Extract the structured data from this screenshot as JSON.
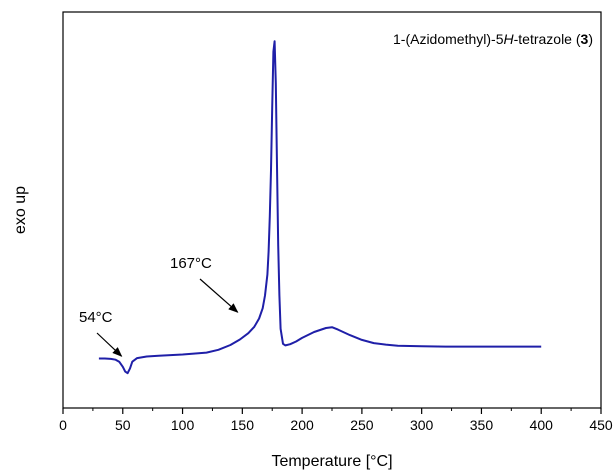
{
  "chart_data": {
    "type": "line",
    "title": {
      "prefix": "1-(Azidomethyl)-5",
      "italic": "H",
      "middle": "-tetrazole (",
      "bold": "3",
      "suffix": ")"
    },
    "xlabel": "Temperature [°C]",
    "ylabel": "exo up",
    "xlim": [
      0,
      450
    ],
    "x_ticks": [
      "0",
      "50",
      "100",
      "150",
      "200",
      "250",
      "300",
      "350",
      "400",
      "450"
    ],
    "y_ticks": [],
    "ylim": [
      0,
      100
    ],
    "grid": false,
    "legend": "none",
    "series": [
      {
        "color": "#1f1fa8",
        "x": [
          30,
          35,
          40,
          44,
          47,
          50,
          52,
          54,
          56,
          58,
          62,
          70,
          80,
          100,
          120,
          130,
          140,
          148,
          155,
          160,
          164,
          167,
          169,
          171,
          172,
          173,
          174,
          175,
          176,
          177,
          178,
          179,
          180,
          181,
          182,
          184,
          186,
          190,
          195,
          200,
          210,
          220,
          225,
          230,
          240,
          250,
          260,
          270,
          280,
          300,
          320,
          350,
          370,
          390,
          400
        ],
        "y": [
          12.5,
          12.5,
          12.4,
          12.2,
          11.7,
          10.4,
          9.2,
          8.8,
          10.0,
          11.7,
          12.6,
          13.0,
          13.2,
          13.5,
          14.0,
          14.7,
          15.9,
          17.3,
          18.9,
          20.5,
          22.6,
          25.2,
          28.4,
          33.7,
          39.5,
          48.4,
          60.0,
          75.8,
          90.0,
          92.6,
          82.1,
          61.1,
          41.1,
          28.4,
          20.0,
          16.2,
          15.8,
          16.1,
          16.8,
          17.7,
          19.2,
          20.2,
          20.4,
          19.8,
          18.4,
          17.2,
          16.4,
          16.0,
          15.7,
          15.6,
          15.5,
          15.5,
          15.5,
          15.5,
          15.5
        ]
      }
    ],
    "annotations": [
      {
        "text": "54°C",
        "target_x": 54,
        "target_y": 8.8
      },
      {
        "text": "167°C",
        "target_x": 167,
        "target_y": 25.2
      }
    ]
  }
}
